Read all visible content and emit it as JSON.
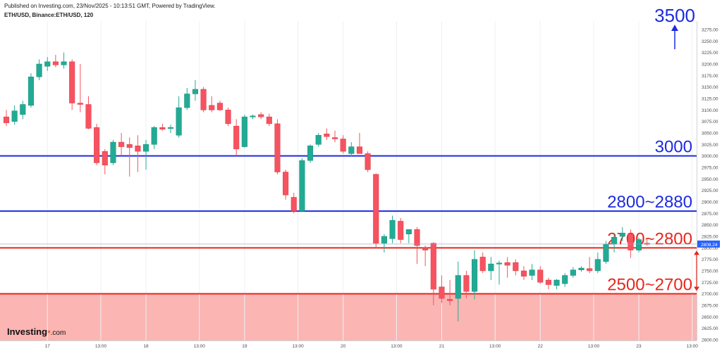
{
  "header": {
    "published": "Published on Investing.com, 23/Nov/2025 - 10:13:51 GMT, Powered by TradingView.",
    "symbol": "ETH/USD, Binance:ETH/USD, 120"
  },
  "logo": {
    "name": "Investing",
    "suffix": ".com"
  },
  "chart_data": {
    "type": "candlestick",
    "ylim": [
      2600,
      3290
    ],
    "y_ticks": [
      3275,
      3250,
      3225,
      3200,
      3175,
      3150,
      3125,
      3100,
      3075,
      3050,
      3025,
      3000,
      2975,
      2950,
      2925,
      2900,
      2875,
      2850,
      2825,
      2800,
      2775,
      2750,
      2725,
      2700,
      2675,
      2650,
      2625,
      2600
    ],
    "x_tick_labels": [
      "17",
      "13:00",
      "18",
      "13:00",
      "19",
      "13:00",
      "20",
      "13:00",
      "21",
      "13:00",
      "22",
      "13:00",
      "23",
      "13:00"
    ],
    "x_tick_slots": [
      5,
      11.5,
      17,
      23.5,
      29,
      35.5,
      41,
      47.5,
      53,
      59.5,
      65,
      71.5,
      77,
      83.5
    ],
    "last_price": "2808.24",
    "up_color": "#22ab94",
    "down_color": "#f7525f",
    "candles": [
      {
        "o": 3085,
        "h": 3100,
        "l": 3065,
        "c": 3072
      },
      {
        "o": 3075,
        "h": 3110,
        "l": 3068,
        "c": 3098
      },
      {
        "o": 3090,
        "h": 3120,
        "l": 3080,
        "c": 3112
      },
      {
        "o": 3110,
        "h": 3180,
        "l": 3105,
        "c": 3172
      },
      {
        "o": 3172,
        "h": 3210,
        "l": 3165,
        "c": 3200
      },
      {
        "o": 3195,
        "h": 3215,
        "l": 3185,
        "c": 3205
      },
      {
        "o": 3205,
        "h": 3220,
        "l": 3193,
        "c": 3198
      },
      {
        "o": 3198,
        "h": 3225,
        "l": 3190,
        "c": 3205
      },
      {
        "o": 3205,
        "h": 3210,
        "l": 3100,
        "c": 3115
      },
      {
        "o": 3115,
        "h": 3200,
        "l": 3095,
        "c": 3112
      },
      {
        "o": 3112,
        "h": 3130,
        "l": 3058,
        "c": 3060
      },
      {
        "o": 3062,
        "h": 3070,
        "l": 2980,
        "c": 2985
      },
      {
        "o": 3010,
        "h": 3015,
        "l": 2960,
        "c": 2980
      },
      {
        "o": 2985,
        "h": 3035,
        "l": 2980,
        "c": 3030
      },
      {
        "o": 3030,
        "h": 3050,
        "l": 3000,
        "c": 3020
      },
      {
        "o": 3025,
        "h": 3040,
        "l": 2955,
        "c": 3018
      },
      {
        "o": 3022,
        "h": 3045,
        "l": 2965,
        "c": 3010
      },
      {
        "o": 3010,
        "h": 3035,
        "l": 2970,
        "c": 3025
      },
      {
        "o": 3025,
        "h": 3065,
        "l": 3015,
        "c": 3062
      },
      {
        "o": 3062,
        "h": 3070,
        "l": 3055,
        "c": 3058
      },
      {
        "o": 3060,
        "h": 3068,
        "l": 3050,
        "c": 3062
      },
      {
        "o": 3045,
        "h": 3130,
        "l": 3040,
        "c": 3105
      },
      {
        "o": 3105,
        "h": 3148,
        "l": 3100,
        "c": 3135
      },
      {
        "o": 3135,
        "h": 3165,
        "l": 3120,
        "c": 3145
      },
      {
        "o": 3145,
        "h": 3150,
        "l": 3095,
        "c": 3100
      },
      {
        "o": 3110,
        "h": 3130,
        "l": 3095,
        "c": 3100
      },
      {
        "o": 3115,
        "h": 3120,
        "l": 3098,
        "c": 3100
      },
      {
        "o": 3100,
        "h": 3105,
        "l": 3065,
        "c": 3070
      },
      {
        "o": 3065,
        "h": 3080,
        "l": 3000,
        "c": 3015
      },
      {
        "o": 3020,
        "h": 3090,
        "l": 3018,
        "c": 3085
      },
      {
        "o": 3085,
        "h": 3090,
        "l": 3080,
        "c": 3087
      },
      {
        "o": 3090,
        "h": 3095,
        "l": 3080,
        "c": 3085
      },
      {
        "o": 3085,
        "h": 3092,
        "l": 3065,
        "c": 3070
      },
      {
        "o": 3070,
        "h": 3080,
        "l": 2960,
        "c": 2965
      },
      {
        "o": 2965,
        "h": 2970,
        "l": 2905,
        "c": 2915
      },
      {
        "o": 2910,
        "h": 2920,
        "l": 2875,
        "c": 2880
      },
      {
        "o": 2880,
        "h": 2995,
        "l": 2878,
        "c": 2990
      },
      {
        "o": 2990,
        "h": 3025,
        "l": 2985,
        "c": 3022
      },
      {
        "o": 3025,
        "h": 3050,
        "l": 3020,
        "c": 3045
      },
      {
        "o": 3048,
        "h": 3060,
        "l": 3035,
        "c": 3042
      },
      {
        "o": 3040,
        "h": 3055,
        "l": 3030,
        "c": 3037
      },
      {
        "o": 3037,
        "h": 3045,
        "l": 3005,
        "c": 3010
      },
      {
        "o": 3005,
        "h": 3030,
        "l": 2998,
        "c": 3020
      },
      {
        "o": 3020,
        "h": 3050,
        "l": 3005,
        "c": 3005
      },
      {
        "o": 3005,
        "h": 3010,
        "l": 2965,
        "c": 2970
      },
      {
        "o": 2960,
        "h": 2962,
        "l": 2800,
        "c": 2810
      },
      {
        "o": 2810,
        "h": 2830,
        "l": 2790,
        "c": 2825
      },
      {
        "o": 2820,
        "h": 2870,
        "l": 2810,
        "c": 2860
      },
      {
        "o": 2858,
        "h": 2865,
        "l": 2810,
        "c": 2818
      },
      {
        "o": 2830,
        "h": 2840,
        "l": 2810,
        "c": 2840
      },
      {
        "o": 2840,
        "h": 2845,
        "l": 2765,
        "c": 2805
      },
      {
        "o": 2800,
        "h": 2805,
        "l": 2760,
        "c": 2795
      },
      {
        "o": 2810,
        "h": 2812,
        "l": 2675,
        "c": 2710
      },
      {
        "o": 2715,
        "h": 2740,
        "l": 2680,
        "c": 2690
      },
      {
        "o": 2688,
        "h": 2730,
        "l": 2675,
        "c": 2685
      },
      {
        "o": 2690,
        "h": 2770,
        "l": 2640,
        "c": 2740
      },
      {
        "o": 2740,
        "h": 2750,
        "l": 2690,
        "c": 2705
      },
      {
        "o": 2705,
        "h": 2795,
        "l": 2688,
        "c": 2775
      },
      {
        "o": 2780,
        "h": 2790,
        "l": 2745,
        "c": 2750
      },
      {
        "o": 2750,
        "h": 2780,
        "l": 2730,
        "c": 2765
      },
      {
        "o": 2765,
        "h": 2772,
        "l": 2720,
        "c": 2767
      },
      {
        "o": 2768,
        "h": 2780,
        "l": 2735,
        "c": 2762
      },
      {
        "o": 2768,
        "h": 2775,
        "l": 2740,
        "c": 2750
      },
      {
        "o": 2750,
        "h": 2760,
        "l": 2730,
        "c": 2738
      },
      {
        "o": 2740,
        "h": 2765,
        "l": 2730,
        "c": 2752
      },
      {
        "o": 2752,
        "h": 2760,
        "l": 2722,
        "c": 2725
      },
      {
        "o": 2730,
        "h": 2735,
        "l": 2710,
        "c": 2720
      },
      {
        "o": 2718,
        "h": 2732,
        "l": 2710,
        "c": 2730
      },
      {
        "o": 2722,
        "h": 2745,
        "l": 2715,
        "c": 2740
      },
      {
        "o": 2740,
        "h": 2758,
        "l": 2735,
        "c": 2752
      },
      {
        "o": 2752,
        "h": 2760,
        "l": 2748,
        "c": 2756
      },
      {
        "o": 2755,
        "h": 2780,
        "l": 2745,
        "c": 2750
      },
      {
        "o": 2750,
        "h": 2790,
        "l": 2745,
        "c": 2775
      },
      {
        "o": 2770,
        "h": 2815,
        "l": 2765,
        "c": 2808
      },
      {
        "o": 2808,
        "h": 2830,
        "l": 2790,
        "c": 2823
      },
      {
        "o": 2825,
        "h": 2845,
        "l": 2815,
        "c": 2832
      },
      {
        "o": 2830,
        "h": 2840,
        "l": 2778,
        "c": 2795
      },
      {
        "o": 2795,
        "h": 2822,
        "l": 2790,
        "c": 2818
      },
      {
        "o": 2810,
        "h": 2820,
        "l": 2805,
        "c": 2808
      }
    ],
    "levels": [
      {
        "price": 3000,
        "label": "3000",
        "color": "#1d2be0"
      },
      {
        "price": 2880,
        "label": "2800~2880",
        "color": "#1d2be0"
      },
      {
        "price": 2800,
        "label": "2700~2800",
        "color": "#e8261c"
      },
      {
        "price": 2700,
        "label": "2500~2700",
        "color": "#e8261c"
      }
    ],
    "target_label": "3500",
    "target_color": "#1d2be0",
    "zone": {
      "from": 2700,
      "to": 2600,
      "color": "#fbb5b3"
    }
  }
}
